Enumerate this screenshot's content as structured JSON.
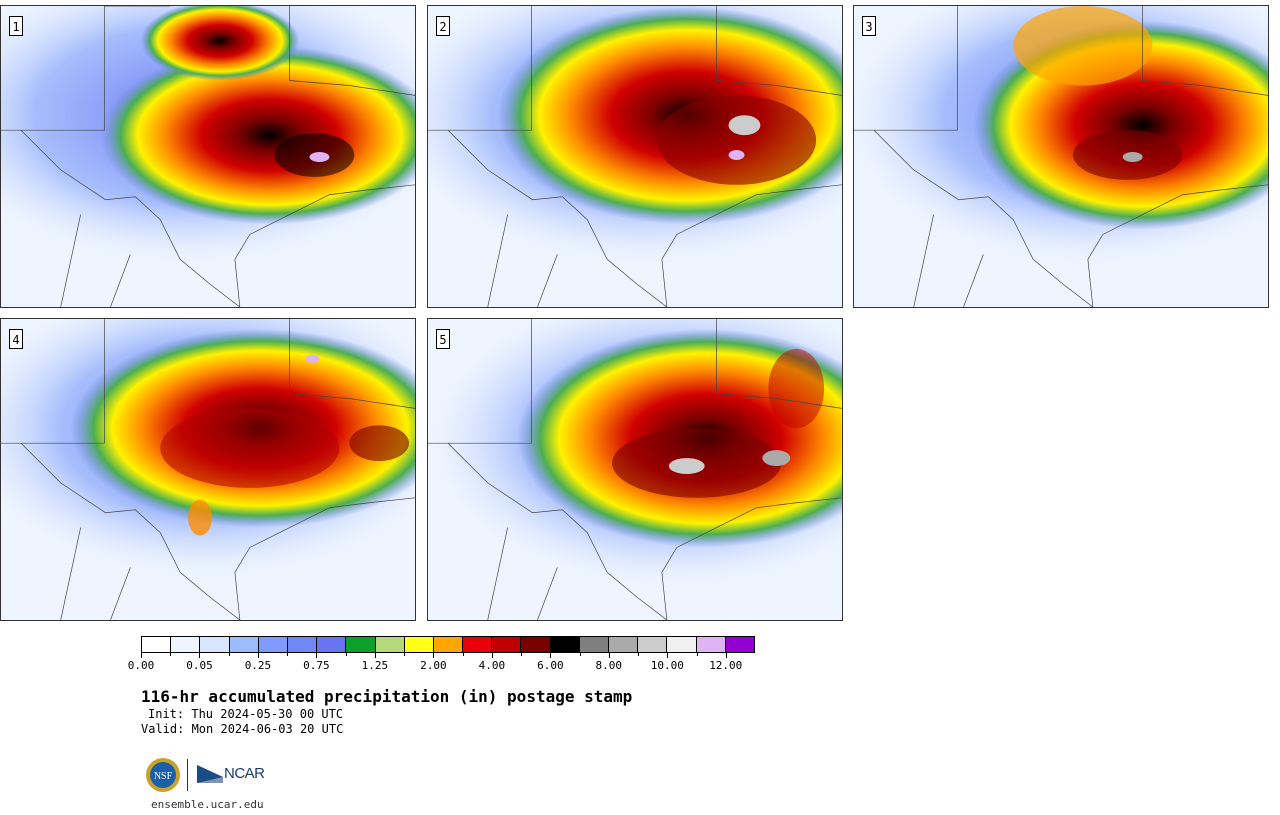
{
  "panels": [
    {
      "label": "1"
    },
    {
      "label": "2"
    },
    {
      "label": "3"
    },
    {
      "label": "4"
    },
    {
      "label": "5"
    }
  ],
  "colorbar": {
    "colors": [
      "#ffffff",
      "#eef5ff",
      "#d8e5ff",
      "#9bbcff",
      "#7f9bff",
      "#6f88f5",
      "#6675f0",
      "#0aa02a",
      "#b3d97a",
      "#fffe17",
      "#ffa500",
      "#e8000b",
      "#c00000",
      "#7a0000",
      "#000000",
      "#7f7f7f",
      "#aaaaaa",
      "#cccccc",
      "#f0f0f0",
      "#dfb3f5",
      "#9400d3"
    ],
    "tick_labels": [
      "0.00",
      "0.05",
      "0.25",
      "0.75",
      "1.25",
      "2.00",
      "4.00",
      "6.00",
      "8.00",
      "10.00",
      "12.00"
    ]
  },
  "title": "116-hr accumulated precipitation (in) postage stamp",
  "init": "Init: Thu 2024-05-30 00 UTC",
  "valid": "Valid: Mon 2024-06-03 20 UTC",
  "logos": {
    "nsf": "NSF",
    "ncar": "NCAR"
  },
  "url": "ensemble.ucar.edu"
}
